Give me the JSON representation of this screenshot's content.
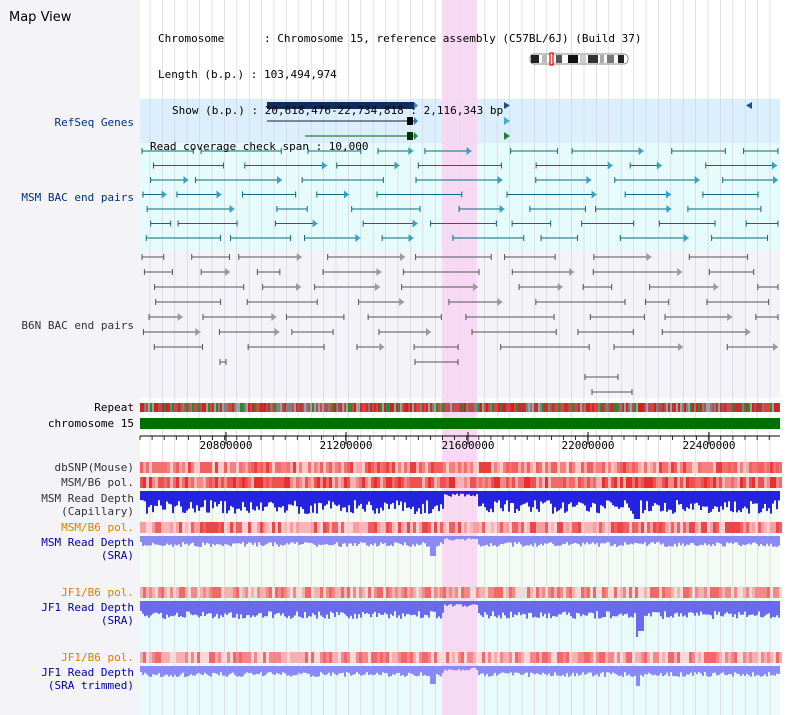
{
  "map_title": "Map View",
  "info": {
    "chromosome": "Chromosome      : Chromosome 15, reference assembly (C57BL/6J) (Build 37)",
    "length": "Length (b.p.) : 103,494,974",
    "show": "Show (b.p.) : 20,618,476-22,734,818 : 2,116,343 bp",
    "coverage": "Read coverage check span : 10,000"
  },
  "tracks": {
    "refseq": "RefSeq Genes",
    "msm_bac": "MSM BAC end pairs",
    "b6n_bac": "B6N BAC end pairs",
    "repeat": "Repeat",
    "chromosome": "chromosome 15",
    "dbsnp": "dbSNP(Mouse)",
    "msm_b6_pol": "MSM/B6 pol.",
    "msm_read_depth": "MSM Read Depth",
    "capillary": "(Capillary)",
    "msm_b6_pol2": "MSM/B6 pol.",
    "msm_read_depth_sra": "MSM Read Depth",
    "sra": "(SRA)",
    "jf1_b6_pol": "JF1/B6 pol.",
    "jf1_read_depth": "JF1 Read Depth",
    "sra2": "(SRA)",
    "jf1_b6_pol2": "JF1/B6 pol.",
    "jf1_read_depth2": "JF1 Read Depth",
    "sra_trimmed": "(SRA trimmed)"
  },
  "ruler_ticks": [
    "20800000",
    "21200000",
    "21600000",
    "22000000",
    "22400000"
  ],
  "colors": {
    "refseq_bg": "#dcefff",
    "bac_bg": "#e6fbfb",
    "highlight": "#f8d4f2",
    "msm_depth": "#1a1ae6",
    "sra_depth": "#8c8cf0",
    "chrom_bar": "#007000",
    "pol_red": "#f05050"
  }
}
